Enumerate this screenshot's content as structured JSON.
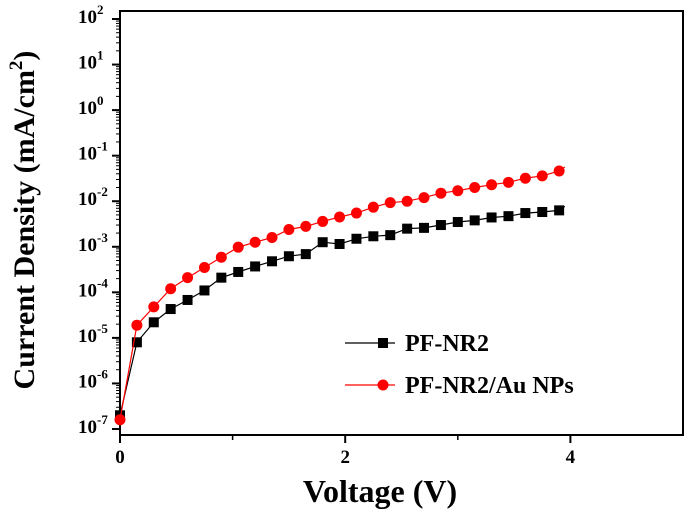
{
  "chart_data": {
    "type": "line",
    "title": "",
    "xlabel": "Voltage (V)",
    "ylabel": "Current Density (mA/cm",
    "ylabel_superscript": "2",
    "ylabel_close": ")",
    "xlim": [
      0,
      5
    ],
    "ylim": [
      1e-07,
      100
    ],
    "yscale": "log",
    "grid": false,
    "legend_placement": "bottom-right",
    "x_ticks": [
      {
        "v": 0,
        "label": "0"
      },
      {
        "v": 2,
        "label": "2"
      },
      {
        "v": 4,
        "label": "4"
      }
    ],
    "y_ticks": [
      {
        "v": 2,
        "base": "10",
        "exp": "2"
      },
      {
        "v": 1,
        "base": "10",
        "exp": "1"
      },
      {
        "v": 0,
        "base": "10",
        "exp": "0"
      },
      {
        "v": -1,
        "base": "10",
        "exp": "-1"
      },
      {
        "v": -2,
        "base": "10",
        "exp": "-2"
      },
      {
        "v": -3,
        "base": "10",
        "exp": "-3"
      },
      {
        "v": -4,
        "base": "10",
        "exp": "-4"
      },
      {
        "v": -5,
        "base": "10",
        "exp": "-5"
      },
      {
        "v": -6,
        "base": "10",
        "exp": "-6"
      },
      {
        "v": -7,
        "base": "10",
        "exp": "-7"
      }
    ],
    "series": [
      {
        "name": "PF-NR2",
        "color": "#000000",
        "marker": "square",
        "x": [
          0,
          0.15,
          0.3,
          0.45,
          0.6,
          0.75,
          0.9,
          1.05,
          1.2,
          1.35,
          1.5,
          1.65,
          1.8,
          1.95,
          2.1,
          2.25,
          2.4,
          2.55,
          2.7,
          2.85,
          3.0,
          3.15,
          3.3,
          3.45,
          3.6,
          3.75,
          3.9
        ],
        "y": [
          2e-07,
          8e-06,
          2.2e-05,
          4.3e-05,
          6.8e-05,
          0.00011,
          0.00021,
          0.00028,
          0.00037,
          0.00048,
          0.00062,
          0.00069,
          0.00126,
          0.00115,
          0.0015,
          0.0017,
          0.0018,
          0.0025,
          0.0026,
          0.003,
          0.0035,
          0.0038,
          0.0044,
          0.0047,
          0.0055,
          0.0058,
          0.0063
        ]
      },
      {
        "name": "PF-NR2/Au NPs",
        "color": "#ff0000",
        "marker": "circle",
        "x": [
          0,
          0.15,
          0.3,
          0.45,
          0.6,
          0.75,
          0.9,
          1.05,
          1.2,
          1.35,
          1.5,
          1.65,
          1.8,
          1.95,
          2.1,
          2.25,
          2.4,
          2.55,
          2.7,
          2.85,
          3.0,
          3.15,
          3.3,
          3.45,
          3.6,
          3.75,
          3.9
        ],
        "y": [
          1.6e-07,
          1.9e-05,
          4.8e-05,
          0.00012,
          0.00021,
          0.00035,
          0.00059,
          0.00098,
          0.00126,
          0.0016,
          0.0024,
          0.0028,
          0.0036,
          0.0045,
          0.0055,
          0.0074,
          0.0093,
          0.01,
          0.012,
          0.015,
          0.017,
          0.02,
          0.023,
          0.026,
          0.032,
          0.036,
          0.046
        ]
      }
    ]
  }
}
